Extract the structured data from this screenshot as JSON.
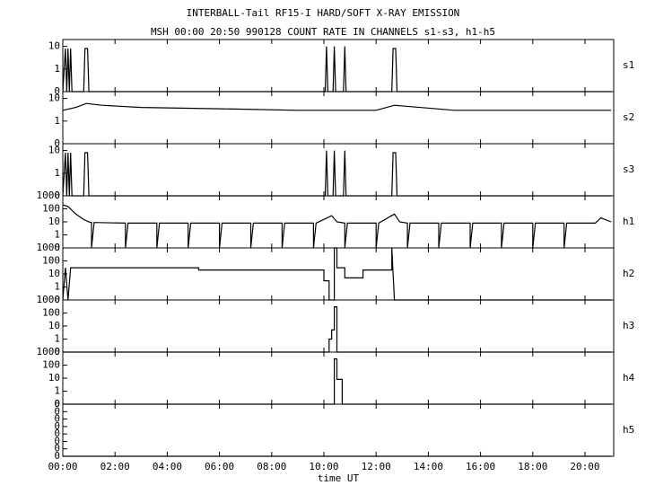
{
  "header": {
    "title": "INTERBALL-Tail RF15-I HARD/SOFT X-RAY EMISSION",
    "subtitle": "MSH 00:00 20:50 990128  COUNT RATE IN CHANNELS s1-s3, h1-h5"
  },
  "chart_data": [
    {
      "type": "line",
      "name": "s1",
      "log": true,
      "ylim": [
        0.1,
        20
      ],
      "yticks": [
        {
          "value": 0.1,
          "label": "0"
        },
        1,
        10
      ],
      "x": [
        0,
        0.1,
        0.15,
        0.2,
        0.25,
        0.3,
        0.35,
        0.8,
        0.85,
        0.95,
        1.0,
        10.05,
        10.1,
        10.15,
        10.35,
        10.4,
        10.45,
        10.75,
        10.8,
        10.85,
        12.6,
        12.65,
        12.75,
        12.8,
        21
      ],
      "values": [
        0.1,
        8,
        0.1,
        8,
        0.1,
        8,
        0.1,
        0.1,
        8,
        8,
        0.1,
        0.1,
        10,
        0.1,
        0.1,
        10,
        0.1,
        0.1,
        10,
        0.1,
        0.1,
        8,
        8,
        0.1,
        0.1
      ]
    },
    {
      "type": "line",
      "name": "s2",
      "log": true,
      "ylim": [
        0.1,
        20
      ],
      "yticks": [
        {
          "value": 0.1,
          "label": "0"
        },
        1,
        10
      ],
      "x": [
        0,
        0.5,
        0.9,
        1.5,
        3,
        6,
        9,
        12,
        12.7,
        15,
        18,
        21
      ],
      "values": [
        3,
        4,
        6,
        5,
        4,
        3.5,
        3,
        3,
        5,
        3,
        3,
        3
      ]
    },
    {
      "type": "line",
      "name": "s3",
      "log": true,
      "ylim": [
        0.1,
        20
      ],
      "yticks": [
        {
          "value": 0.1,
          "label": "0"
        },
        1,
        10
      ],
      "x": [
        0,
        0.1,
        0.15,
        0.2,
        0.25,
        0.3,
        0.35,
        0.8,
        0.85,
        0.95,
        1.0,
        10.05,
        10.1,
        10.15,
        10.35,
        10.4,
        10.45,
        10.75,
        10.8,
        10.85,
        12.6,
        12.65,
        12.75,
        12.8,
        21
      ],
      "values": [
        0.1,
        8,
        0.1,
        8,
        0.1,
        8,
        0.1,
        0.1,
        8,
        8,
        0.1,
        0.1,
        10,
        0.1,
        0.1,
        10,
        0.1,
        0.1,
        10,
        0.1,
        0.1,
        8,
        8,
        0.1,
        0.1
      ]
    },
    {
      "type": "line",
      "name": "h1",
      "log": true,
      "ylim": [
        0.1,
        1000
      ],
      "yticks": [
        {
          "value": 0.1,
          "label": "0"
        },
        1,
        10,
        100,
        1000
      ],
      "x": [
        0,
        0.2,
        0.5,
        0.8,
        1.0,
        1.1,
        1.1,
        1.2,
        2.4,
        2.4,
        2.5,
        3.6,
        3.6,
        3.7,
        4.8,
        4.8,
        4.9,
        6.0,
        6.0,
        6.1,
        7.2,
        7.2,
        7.3,
        8.4,
        8.4,
        8.5,
        9.6,
        9.6,
        9.7,
        10.3,
        10.5,
        10.8,
        10.8,
        10.9,
        12.0,
        12.0,
        12.1,
        12.7,
        12.9,
        13.2,
        13.2,
        13.3,
        14.4,
        14.4,
        14.5,
        15.6,
        15.6,
        15.7,
        16.8,
        16.8,
        16.9,
        18.0,
        18.0,
        18.1,
        19.2,
        19.2,
        19.3,
        20.4,
        20.6,
        21
      ],
      "values": [
        200,
        150,
        40,
        15,
        10,
        9,
        0.1,
        9,
        8,
        0.1,
        8,
        8,
        0.1,
        8,
        8,
        0.1,
        8,
        8,
        0.1,
        8,
        8,
        0.1,
        8,
        8,
        0.1,
        8,
        8,
        0.1,
        8,
        30,
        10,
        8,
        0.1,
        8,
        8,
        0.1,
        8,
        40,
        10,
        8,
        0.1,
        8,
        8,
        0.1,
        8,
        8,
        0.1,
        8,
        8,
        0.1,
        8,
        8,
        0.1,
        8,
        8,
        0.1,
        8,
        8,
        20,
        10
      ]
    },
    {
      "type": "line",
      "name": "h2",
      "log": true,
      "ylim": [
        0.1,
        1000
      ],
      "yticks": [
        {
          "value": 0.1,
          "label": "0"
        },
        1,
        10,
        100,
        1000
      ],
      "x": [
        0,
        0.1,
        0.2,
        0.3,
        5.2,
        5.2,
        10.0,
        10.0,
        10.2,
        10.2,
        10.4,
        10.4,
        10.5,
        10.5,
        10.8,
        10.8,
        11.5,
        11.5,
        12.6,
        12.6,
        12.7,
        21
      ],
      "values": [
        0.1,
        30,
        0.1,
        30,
        30,
        20,
        20,
        3,
        3,
        0.1,
        0.1,
        1000,
        1000,
        30,
        30,
        5,
        5,
        20,
        20,
        1000,
        0.1,
        0.1
      ]
    },
    {
      "type": "line",
      "name": "h3",
      "log": true,
      "ylim": [
        0.1,
        1000
      ],
      "yticks": [
        {
          "value": 0.1,
          "label": "0"
        },
        1,
        10,
        100,
        1000
      ],
      "x": [
        0,
        10.2,
        10.2,
        10.3,
        10.3,
        10.4,
        10.4,
        10.5,
        10.5,
        21
      ],
      "values": [
        0.1,
        0.1,
        1,
        1,
        5,
        5,
        300,
        300,
        0.1,
        0.1
      ]
    },
    {
      "type": "line",
      "name": "h4",
      "log": true,
      "ylim": [
        0.1,
        1000
      ],
      "yticks": [
        {
          "value": 0.1,
          "label": "0"
        },
        1,
        10,
        100,
        1000
      ],
      "x": [
        0,
        10.4,
        10.4,
        10.5,
        10.5,
        10.7,
        10.7,
        21
      ],
      "values": [
        0.1,
        0.1,
        300,
        300,
        8,
        8,
        0.1,
        0.1
      ]
    },
    {
      "type": "line",
      "name": "h5",
      "log": false,
      "ylim": [
        0,
        7
      ],
      "yticks": [
        {
          "value": 0,
          "label": "0"
        },
        {
          "value": 1,
          "label": "0"
        },
        {
          "value": 2,
          "label": "0"
        },
        {
          "value": 3,
          "label": "0"
        },
        {
          "value": 4,
          "label": "0"
        },
        {
          "value": 5,
          "label": "0"
        },
        {
          "value": 6,
          "label": "0"
        },
        {
          "value": 7,
          "label": "0"
        }
      ],
      "x": [
        0,
        21
      ],
      "values": [
        0,
        0
      ],
      "xlim": [
        0,
        21.1
      ],
      "x_label": "time UT",
      "xticks": [
        {
          "value": 0,
          "label": "00:00"
        },
        {
          "value": 2,
          "label": "02:00"
        },
        {
          "value": 4,
          "label": "04:00"
        },
        {
          "value": 6,
          "label": "06:00"
        },
        {
          "value": 8,
          "label": "08:00"
        },
        {
          "value": 10,
          "label": "10:00"
        },
        {
          "value": 12,
          "label": "12:00"
        },
        {
          "value": 14,
          "label": "14:00"
        },
        {
          "value": 16,
          "label": "16:00"
        },
        {
          "value": 18,
          "label": "18:00"
        },
        {
          "value": 20,
          "label": "20:00"
        }
      ]
    }
  ]
}
